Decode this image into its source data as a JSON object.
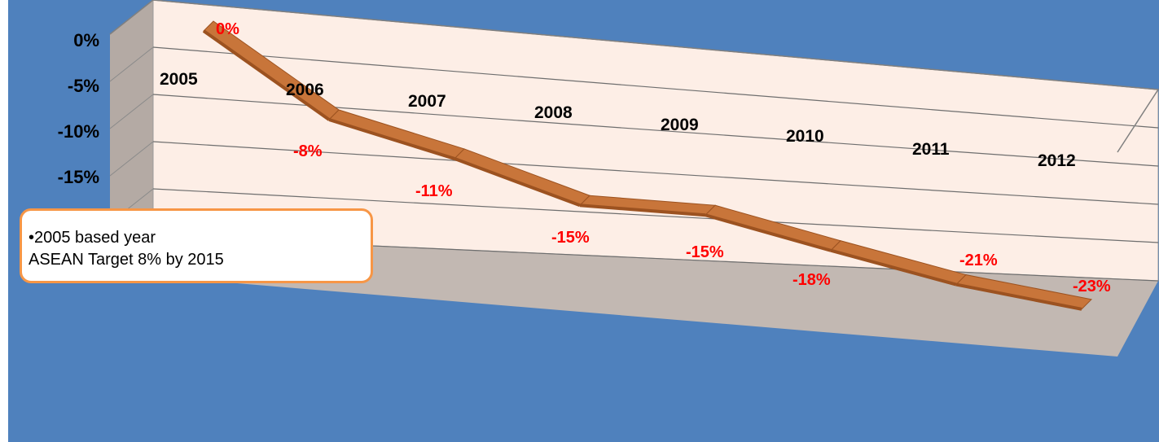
{
  "chart_data": {
    "type": "line",
    "style": "3d",
    "categories": [
      "2005",
      "2006",
      "2007",
      "2008",
      "2009",
      "2010",
      "2011",
      "2012"
    ],
    "values": [
      0,
      -8,
      -11,
      -15,
      -15,
      -18,
      -21,
      -23
    ],
    "data_labels": [
      "0%",
      "-8%",
      "-11%",
      "-15%",
      "-15%",
      "-18%",
      "-21%",
      "-23%"
    ],
    "y_ticks": [
      "0%",
      "-5%",
      "-10%",
      "-15%"
    ],
    "ylim": [
      -25,
      0
    ],
    "grid": true,
    "colors": {
      "background": "#4f81bd",
      "back_wall": "#fdeee6",
      "side_wall": "#b4aaa4",
      "floor": "#c2b8b2",
      "series": "#c8753a",
      "data_label": "#ff0000",
      "note_border": "#f79646"
    }
  },
  "note": {
    "line1": "•2005 based year",
    "line2": "ASEAN Target 8% by 2015"
  }
}
